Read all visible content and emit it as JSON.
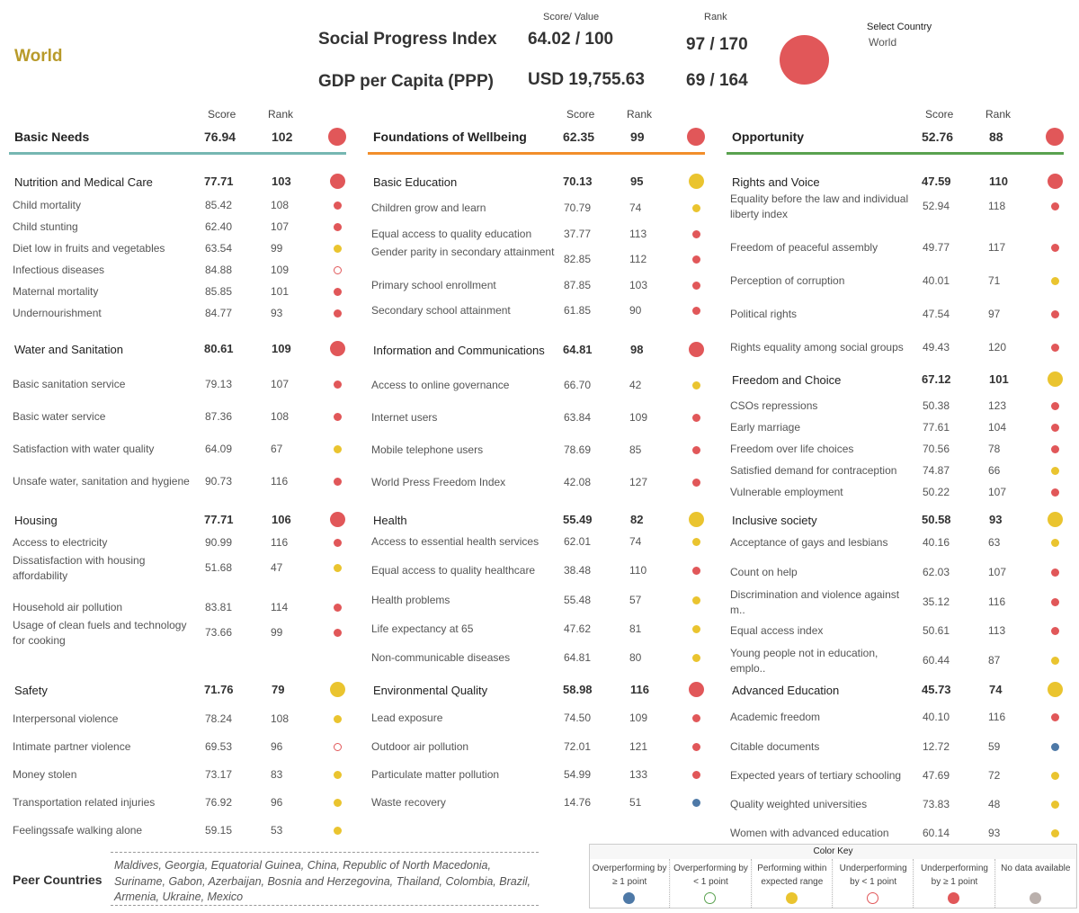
{
  "country": "World",
  "header": {
    "score_label": "Score/ Value",
    "rank_label": "Rank",
    "spi_label": "Social Progress Index",
    "spi_value": "64.02 / 100",
    "spi_rank": "97 / 170",
    "gdp_label": "GDP per Capita (PPP)",
    "gdp_value": "USD 19,755.63",
    "gdp_rank": "69 / 164",
    "select_label": "Select Country",
    "select_value": "World"
  },
  "col_labels": {
    "score": "Score",
    "rank": "Rank"
  },
  "columns": [
    {
      "title": "Basic Needs",
      "score": "76.94",
      "rank": "102",
      "color": "#e15759",
      "bar_color": "#76b7b2",
      "components": [
        {
          "name": "Nutrition and Medical Care",
          "score": "77.71",
          "rank": "103",
          "status": "red",
          "items": [
            {
              "name": "Child mortality",
              "score": "85.42",
              "rank": "108",
              "status": "red"
            },
            {
              "name": "Child stunting",
              "score": "62.40",
              "rank": "107",
              "status": "red"
            },
            {
              "name": "Diet low in fruits and vegetables",
              "score": "63.54",
              "rank": "99",
              "status": "yellow"
            },
            {
              "name": "Infectious diseases",
              "score": "84.88",
              "rank": "109",
              "status": "ring-red"
            },
            {
              "name": "Maternal mortality",
              "score": "85.85",
              "rank": "101",
              "status": "red"
            },
            {
              "name": "Undernourishment",
              "score": "84.77",
              "rank": "93",
              "status": "red"
            }
          ]
        },
        {
          "name": "Water and Sanitation",
          "score": "80.61",
          "rank": "109",
          "status": "red",
          "items": [
            {
              "name": "Basic sanitation service",
              "score": "79.13",
              "rank": "107",
              "status": "red"
            },
            {
              "name": "Basic water service",
              "score": "87.36",
              "rank": "108",
              "status": "red"
            },
            {
              "name": "Satisfaction with water quality",
              "score": "64.09",
              "rank": "67",
              "status": "yellow"
            },
            {
              "name": "Unsafe water, sanitation and hygiene",
              "score": "90.73",
              "rank": "116",
              "status": "red"
            }
          ]
        },
        {
          "name": "Housing",
          "score": "77.71",
          "rank": "106",
          "status": "red",
          "items": [
            {
              "name": "Access to electricity",
              "score": "90.99",
              "rank": "116",
              "status": "red"
            },
            {
              "name": "Dissatisfaction with housing affordability",
              "score": "51.68",
              "rank": "47",
              "status": "yellow"
            },
            {
              "name": "Household air pollution",
              "score": "83.81",
              "rank": "114",
              "status": "red"
            },
            {
              "name": "Usage of clean fuels and technology for cooking",
              "score": "73.66",
              "rank": "99",
              "status": "red"
            }
          ]
        },
        {
          "name": "Safety",
          "score": "71.76",
          "rank": "79",
          "status": "yellow",
          "items": [
            {
              "name": "Interpersonal violence",
              "score": "78.24",
              "rank": "108",
              "status": "yellow"
            },
            {
              "name": "Intimate partner violence",
              "score": "69.53",
              "rank": "96",
              "status": "ring-red"
            },
            {
              "name": "Money stolen",
              "score": "73.17",
              "rank": "83",
              "status": "yellow"
            },
            {
              "name": "Transportation related injuries",
              "score": "76.92",
              "rank": "96",
              "status": "yellow"
            },
            {
              "name": "Feelingssafe walking alone",
              "score": "59.15",
              "rank": "53",
              "status": "yellow"
            }
          ]
        }
      ]
    },
    {
      "title": "Foundations of Wellbeing",
      "score": "62.35",
      "rank": "99",
      "color": "#e15759",
      "bar_color": "#f28e2b",
      "components": [
        {
          "name": "Basic Education",
          "score": "70.13",
          "rank": "95",
          "status": "yellow",
          "items": [
            {
              "name": "Children grow and learn",
              "score": "70.79",
              "rank": "74",
              "status": "yellow"
            },
            {
              "name": "Equal access to quality education",
              "score": "37.77",
              "rank": "113",
              "status": "red"
            },
            {
              "name": "Gender parity in secondary attainment",
              "score": "82.85",
              "rank": "112",
              "status": "red"
            },
            {
              "name": "Primary school enrollment",
              "score": "87.85",
              "rank": "103",
              "status": "red"
            },
            {
              "name": "Secondary school attainment",
              "score": "61.85",
              "rank": "90",
              "status": "red"
            }
          ]
        },
        {
          "name": "Information and Communications",
          "score": "64.81",
          "rank": "98",
          "status": "red",
          "items": [
            {
              "name": "Access to online governance",
              "score": "66.70",
              "rank": "42",
              "status": "yellow"
            },
            {
              "name": "Internet users",
              "score": "63.84",
              "rank": "109",
              "status": "red"
            },
            {
              "name": "Mobile telephone users",
              "score": "78.69",
              "rank": "85",
              "status": "red"
            },
            {
              "name": "World Press Freedom Index",
              "score": "42.08",
              "rank": "127",
              "status": "red"
            }
          ]
        },
        {
          "name": "Health",
          "score": "55.49",
          "rank": "82",
          "status": "yellow",
          "items": [
            {
              "name": "Access to essential health services",
              "score": "62.01",
              "rank": "74",
              "status": "yellow"
            },
            {
              "name": "Equal access to quality healthcare",
              "score": "38.48",
              "rank": "110",
              "status": "red"
            },
            {
              "name": "Health problems",
              "score": "55.48",
              "rank": "57",
              "status": "yellow"
            },
            {
              "name": "Life expectancy at 65",
              "score": "47.62",
              "rank": "81",
              "status": "yellow"
            },
            {
              "name": "Non-communicable diseases",
              "score": "64.81",
              "rank": "80",
              "status": "yellow"
            }
          ]
        },
        {
          "name": "Environmental Quality",
          "score": "58.98",
          "rank": "116",
          "status": "red",
          "items": [
            {
              "name": "Lead exposure",
              "score": "74.50",
              "rank": "109",
              "status": "red"
            },
            {
              "name": "Outdoor air pollution",
              "score": "72.01",
              "rank": "121",
              "status": "red"
            },
            {
              "name": "Particulate matter pollution",
              "score": "54.99",
              "rank": "133",
              "status": "red"
            },
            {
              "name": "Waste recovery",
              "score": "14.76",
              "rank": "51",
              "status": "blue"
            }
          ]
        }
      ]
    },
    {
      "title": "Opportunity",
      "score": "52.76",
      "rank": "88",
      "color": "#e15759",
      "bar_color": "#59a14f",
      "components": [
        {
          "name": "Rights and Voice",
          "score": "47.59",
          "rank": "110",
          "status": "red",
          "items": [
            {
              "name": "Equality before the law and individual liberty index",
              "score": "52.94",
              "rank": "118",
              "status": "red"
            },
            {
              "name": "Freedom of peaceful assembly",
              "score": "49.77",
              "rank": "117",
              "status": "red"
            },
            {
              "name": "Perception of corruption",
              "score": "40.01",
              "rank": "71",
              "status": "yellow"
            },
            {
              "name": "Political rights",
              "score": "47.54",
              "rank": "97",
              "status": "red"
            },
            {
              "name": "Rights equality among social groups",
              "score": "49.43",
              "rank": "120",
              "status": "red"
            }
          ]
        },
        {
          "name": "Freedom and Choice",
          "score": "67.12",
          "rank": "101",
          "status": "yellow",
          "items": [
            {
              "name": "CSOs repressions",
              "score": "50.38",
              "rank": "123",
              "status": "red"
            },
            {
              "name": "Early marriage",
              "score": "77.61",
              "rank": "104",
              "status": "red"
            },
            {
              "name": "Freedom over life choices",
              "score": "70.56",
              "rank": "78",
              "status": "red"
            },
            {
              "name": "Satisfied demand for contraception",
              "score": "74.87",
              "rank": "66",
              "status": "yellow"
            },
            {
              "name": "Vulnerable employment",
              "score": "50.22",
              "rank": "107",
              "status": "red"
            }
          ]
        },
        {
          "name": "Inclusive society",
          "score": "50.58",
          "rank": "93",
          "status": "yellow",
          "items": [
            {
              "name": "Acceptance of gays and lesbians",
              "score": "40.16",
              "rank": "63",
              "status": "yellow"
            },
            {
              "name": "Count on help",
              "score": "62.03",
              "rank": "107",
              "status": "red"
            },
            {
              "name": "Discrimination and violence against m..",
              "score": "35.12",
              "rank": "116",
              "status": "red"
            },
            {
              "name": "Equal access index",
              "score": "50.61",
              "rank": "113",
              "status": "red"
            },
            {
              "name": "Young people not in education, emplo..",
              "score": "60.44",
              "rank": "87",
              "status": "yellow"
            }
          ]
        },
        {
          "name": "Advanced Education",
          "score": "45.73",
          "rank": "74",
          "status": "yellow",
          "items": [
            {
              "name": "Academic freedom",
              "score": "40.10",
              "rank": "116",
              "status": "red"
            },
            {
              "name": "Citable documents",
              "score": "12.72",
              "rank": "59",
              "status": "blue"
            },
            {
              "name": "Expected years of tertiary schooling",
              "score": "47.69",
              "rank": "72",
              "status": "yellow"
            },
            {
              "name": "Quality weighted universities",
              "score": "73.83",
              "rank": "48",
              "status": "yellow"
            },
            {
              "name": "Women with advanced education",
              "score": "60.14",
              "rank": "93",
              "status": "yellow"
            }
          ]
        }
      ]
    }
  ],
  "peer": {
    "label": "Peer Countries",
    "countries": "Maldives, Georgia, Equatorial Guinea, China, Republic of North Macedonia, Suriname, Gabon, Azerbaijan, Bosnia and Herzegovina, Thailand, Colombia, Brazil, Armenia, Ukraine, Mexico"
  },
  "color_key": {
    "title": "Color Key",
    "items": [
      {
        "label": "Overperforming by ≥ 1 point",
        "status": "blue"
      },
      {
        "label": "Overperforming by < 1 point",
        "status": "ring-green"
      },
      {
        "label": "Performing within expected range",
        "status": "yellow"
      },
      {
        "label": "Underperforming by < 1 point",
        "status": "ring-red"
      },
      {
        "label": "Underperforming by ≥ 1 point",
        "status": "red"
      },
      {
        "label": "No data available",
        "status": "grey"
      }
    ]
  },
  "colors": {
    "red": "#e15759",
    "yellow": "#eac42f",
    "blue": "#4e79a7",
    "green": "#59a14f",
    "grey": "#bab0ac",
    "title_gold": "#b89a2a"
  }
}
